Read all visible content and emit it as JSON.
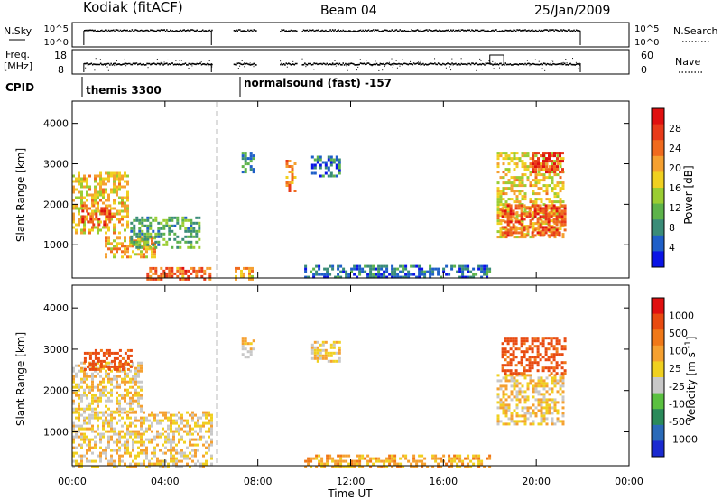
{
  "header": {
    "station": "Kodiak (fitACF)",
    "beam": "Beam 04",
    "date": "25/Jan/2009"
  },
  "strip_labels": {
    "nsky": "N.Sky",
    "freq_line1": "Freq.",
    "freq_line2": "[MHz]",
    "cpid": "CPID",
    "nsearch": "N.Search",
    "nave": "Nave",
    "nsky_top_tick": "10^5",
    "nsky_bottom_tick": "10^0",
    "nsearch_top_tick": "10^5",
    "nsearch_bottom_tick": "10^0",
    "freq_top_tick": "18",
    "freq_bottom_tick": "8",
    "nave_top_tick": "60",
    "nave_bottom_tick": "0"
  },
  "cpid_segments": [
    {
      "label": "themis 3300",
      "start_hour": 0.0
    },
    {
      "label": "normalsound (fast) -157",
      "start_hour": 6.9
    }
  ],
  "x_axis": {
    "title": "Time UT",
    "range_hours": [
      0,
      24
    ],
    "tick_hours": [
      0,
      4,
      8,
      12,
      16,
      20,
      24
    ],
    "tick_labels": [
      "00:00",
      "04:00",
      "08:00",
      "12:00",
      "16:00",
      "20:00",
      "00:00"
    ]
  },
  "panels": {
    "power": {
      "ylabel": "Slant Range [km]",
      "y_range": [
        180,
        4550
      ],
      "y_ticks": [
        1000,
        2000,
        3000,
        4000
      ],
      "colorbar": {
        "label": "Power [dB]",
        "tick_values": [
          "4",
          "8",
          "12",
          "16",
          "20",
          "24",
          "28"
        ],
        "colors": [
          "#0a14e6",
          "#1f5fc8",
          "#3a8c78",
          "#5db34a",
          "#9acd32",
          "#f0d020",
          "#f5a030",
          "#f06a1e",
          "#e83a1a",
          "#e01010"
        ]
      }
    },
    "velocity": {
      "ylabel": "Slant Range [km]",
      "y_range": [
        180,
        4550
      ],
      "y_ticks": [
        1000,
        2000,
        3000,
        4000
      ],
      "colorbar": {
        "label": "Velocity [m s^-1]",
        "tick_values": [
          "1000",
          "500",
          "100",
          "25",
          "-25",
          "-100",
          "-500",
          "-1000"
        ],
        "colors": [
          "#1a2ad0",
          "#2a6ab8",
          "#2a8a5a",
          "#5ac040",
          "#c8c8c8",
          "#f0d020",
          "#f5a030",
          "#f07818",
          "#e84a10",
          "#e01010"
        ]
      }
    }
  },
  "chart_data": {
    "type": "heatmap",
    "title": "Kodiak (fitACF)  Beam 04  25/Jan/2009",
    "xlabel": "Time UT",
    "ylabel": "Slant Range [km]",
    "xlim_hours": [
      0,
      24
    ],
    "ylim_km": [
      180,
      4550
    ],
    "power_regions": [
      {
        "t0": 0.0,
        "t1": 2.4,
        "r0": 1300,
        "r1": 2800,
        "level_db": 18
      },
      {
        "t0": 0.4,
        "t1": 1.8,
        "r0": 1500,
        "r1": 2000,
        "level_db": 26
      },
      {
        "t0": 1.4,
        "t1": 3.6,
        "r0": 700,
        "r1": 1200,
        "level_db": 20
      },
      {
        "t0": 2.5,
        "t1": 5.5,
        "r0": 900,
        "r1": 1700,
        "level_db": 10
      },
      {
        "t0": 3.2,
        "t1": 6.0,
        "r0": 180,
        "r1": 450,
        "level_db": 24
      },
      {
        "t0": 7.0,
        "t1": 7.8,
        "r0": 180,
        "r1": 450,
        "level_db": 20
      },
      {
        "t0": 7.3,
        "t1": 7.8,
        "r0": 2800,
        "r1": 3300,
        "level_db": 8
      },
      {
        "t0": 9.2,
        "t1": 9.6,
        "r0": 2300,
        "r1": 3100,
        "level_db": 22
      },
      {
        "t0": 10.3,
        "t1": 11.5,
        "r0": 2700,
        "r1": 3200,
        "level_db": 6
      },
      {
        "t0": 10.0,
        "t1": 18.0,
        "r0": 180,
        "r1": 500,
        "level_db": 6
      },
      {
        "t0": 18.3,
        "t1": 21.2,
        "r0": 1200,
        "r1": 3300,
        "level_db": 18
      },
      {
        "t0": 18.5,
        "t1": 21.2,
        "r0": 1200,
        "r1": 2000,
        "level_db": 26
      },
      {
        "t0": 19.8,
        "t1": 21.2,
        "r0": 2800,
        "r1": 3300,
        "level_db": 28
      }
    ],
    "velocity_regions": [
      {
        "t0": 0.0,
        "t1": 3.0,
        "r0": 1500,
        "r1": 2700,
        "velocity": 0
      },
      {
        "t0": 0.0,
        "t1": 6.0,
        "r0": 180,
        "r1": 1500,
        "velocity": 0
      },
      {
        "t0": 0.5,
        "t1": 2.5,
        "r0": 2500,
        "r1": 3000,
        "velocity": -300
      },
      {
        "t0": 7.3,
        "t1": 7.8,
        "r0": 2800,
        "r1": 3300,
        "velocity": 0
      },
      {
        "t0": 10.3,
        "t1": 11.5,
        "r0": 2700,
        "r1": 3200,
        "velocity": 0
      },
      {
        "t0": 10.0,
        "t1": 18.0,
        "r0": 180,
        "r1": 450,
        "velocity": -60
      },
      {
        "t0": 18.3,
        "t1": 21.2,
        "r0": 1200,
        "r1": 2400,
        "velocity": 0
      },
      {
        "t0": 18.5,
        "t1": 21.2,
        "r0": 2400,
        "r1": 3300,
        "velocity": -300
      }
    ],
    "data_gaps_hours": [
      [
        6.0,
        6.9
      ],
      [
        7.9,
        8.9
      ],
      [
        9.7,
        9.9
      ],
      [
        21.9,
        24.0
      ]
    ]
  }
}
